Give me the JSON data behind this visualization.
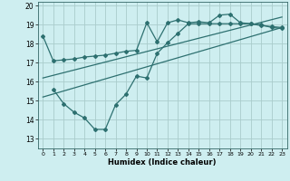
{
  "title": "",
  "xlabel": "Humidex (Indice chaleur)",
  "bg_color": "#ceeef0",
  "grid_color": "#aacccc",
  "line_color": "#2d7070",
  "xlim": [
    -0.5,
    23.5
  ],
  "ylim": [
    12.5,
    20.2
  ],
  "yticks": [
    13,
    14,
    15,
    16,
    17,
    18,
    19,
    20
  ],
  "xticks": [
    0,
    1,
    2,
    3,
    4,
    5,
    6,
    7,
    8,
    9,
    10,
    11,
    12,
    13,
    14,
    15,
    16,
    17,
    18,
    19,
    20,
    21,
    22,
    23
  ],
  "line1_x": [
    0,
    1,
    2,
    3,
    4,
    5,
    6,
    7,
    8,
    9,
    10,
    11,
    12,
    13,
    14,
    15,
    16,
    17,
    18,
    19,
    20,
    21,
    22,
    23
  ],
  "line1_y": [
    18.4,
    17.1,
    17.15,
    17.2,
    17.3,
    17.35,
    17.4,
    17.5,
    17.6,
    17.65,
    19.1,
    18.1,
    19.1,
    19.25,
    19.1,
    19.15,
    19.1,
    19.5,
    19.55,
    19.1,
    19.05,
    18.95,
    18.9,
    18.85
  ],
  "line2_x": [
    1,
    2,
    3,
    4,
    5,
    6,
    7,
    8,
    9,
    10,
    11,
    12,
    13,
    14,
    15,
    16,
    17,
    18,
    19,
    20,
    21,
    22,
    23
  ],
  "line2_y": [
    15.6,
    14.85,
    14.4,
    14.1,
    13.5,
    13.5,
    14.8,
    15.35,
    16.3,
    16.2,
    17.5,
    18.05,
    18.55,
    19.05,
    19.05,
    19.05,
    19.05,
    19.05,
    19.05,
    19.05,
    19.0,
    18.85,
    18.8
  ],
  "line3_x": [
    0,
    23
  ],
  "line3_y": [
    15.2,
    18.85
  ],
  "line4_x": [
    0,
    23
  ],
  "line4_y": [
    16.2,
    19.4
  ]
}
